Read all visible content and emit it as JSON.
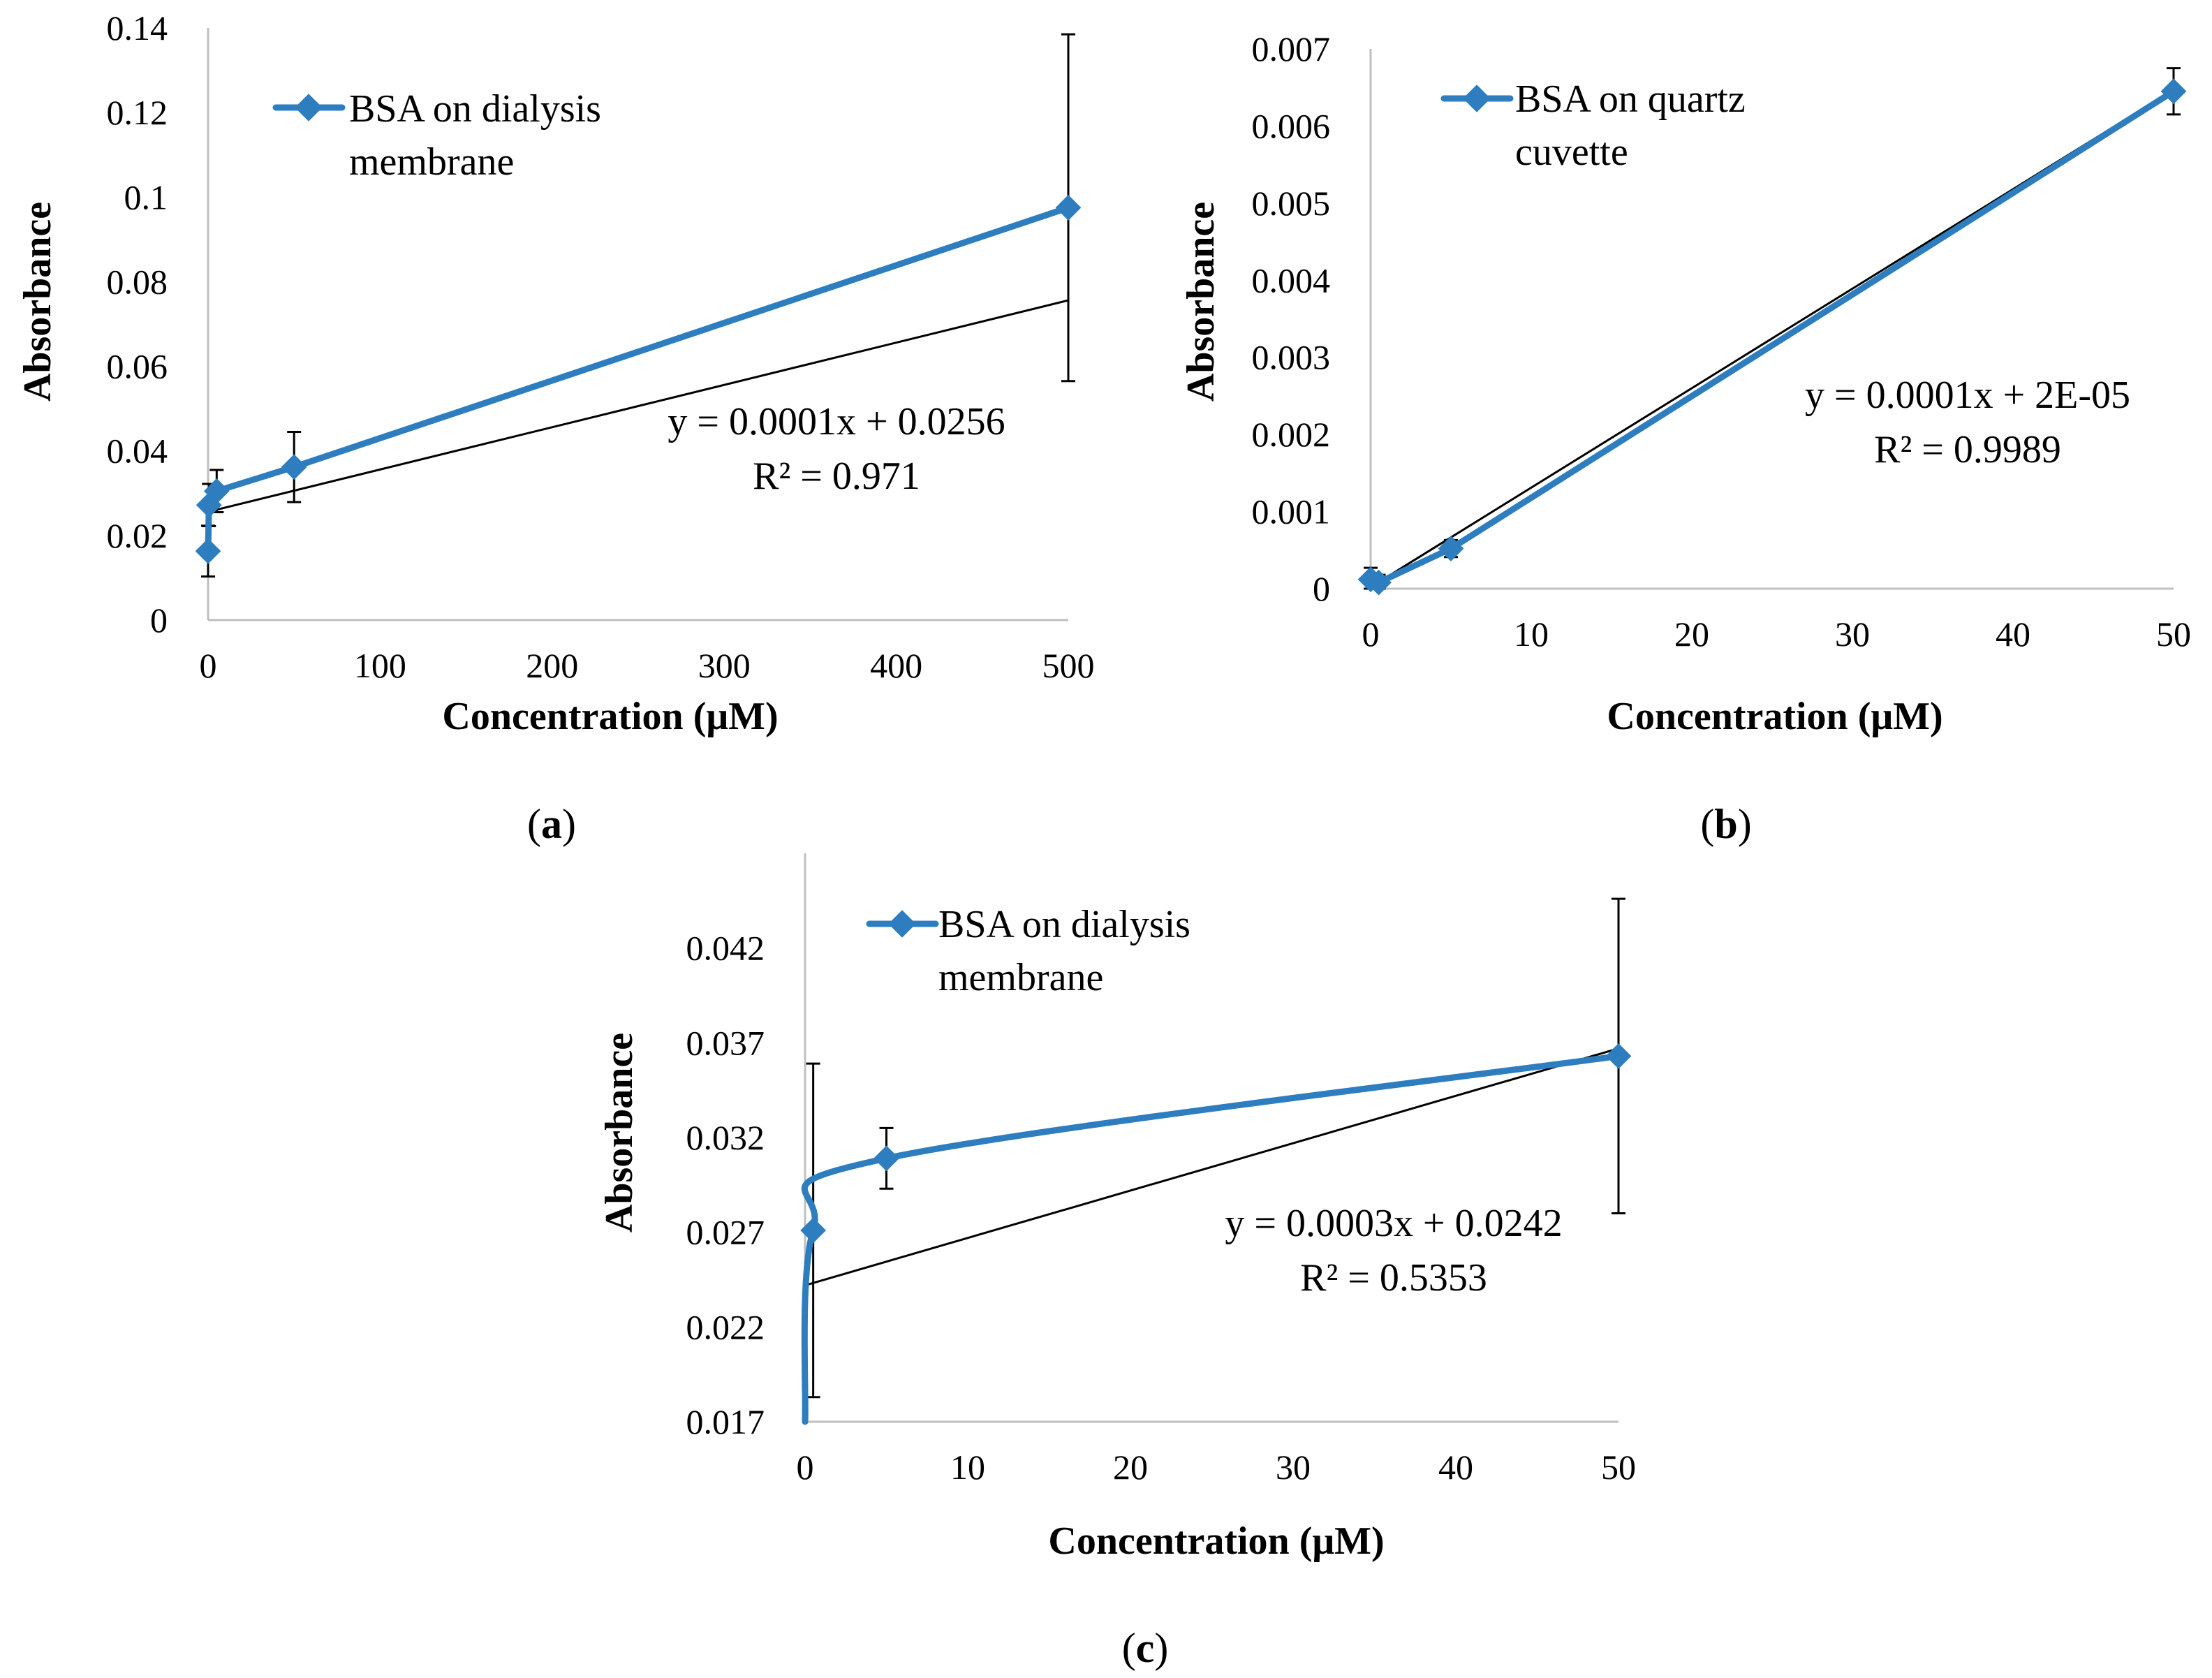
{
  "colors": {
    "series": "#2e7ebf",
    "trendline": "#000000",
    "axis": "#bfbfbf"
  },
  "chart_data": [
    {
      "panel": "a",
      "type": "line",
      "caption": {
        "open": "(",
        "letter": "a",
        "close": ")"
      },
      "xlabel": "Concentration (μM)",
      "ylabel": "Absorbance",
      "xlim": [
        0,
        500
      ],
      "ylim": [
        0,
        0.14
      ],
      "xticks": [
        0,
        100,
        200,
        300,
        400,
        500
      ],
      "yticks": [
        0,
        0.02,
        0.04,
        0.06,
        0.08,
        0.1,
        0.12,
        0.14
      ],
      "ytick_labels": [
        "0",
        "0.02",
        "0.04",
        "0.06",
        "0.08",
        "0.1",
        "0.12",
        "0.14"
      ],
      "legend": {
        "lines": [
          "BSA on dialysis",
          "membrane"
        ]
      },
      "series": [
        {
          "name": "BSA on dialysis membrane",
          "smooth": false,
          "x": [
            0,
            0.5,
            5,
            50,
            500
          ],
          "y": [
            0.0163,
            0.0272,
            0.0305,
            0.0362,
            0.0975
          ],
          "err": [
            0.006,
            0.005,
            0.005,
            0.0083,
            0.041
          ]
        }
      ],
      "trendline": {
        "slope": 0.0001,
        "intercept": 0.0256,
        "equation": "y = 0.0001x + 0.0256",
        "r2": "R² = 0.971"
      }
    },
    {
      "panel": "b",
      "type": "line",
      "caption": {
        "open": "(",
        "letter": "b",
        "close": ")"
      },
      "xlabel": "Concentration (μM)",
      "ylabel": "Absorbance",
      "xlim": [
        0,
        50
      ],
      "ylim": [
        0,
        0.007
      ],
      "xticks": [
        0,
        10,
        20,
        30,
        40,
        50
      ],
      "yticks": [
        0,
        0.001,
        0.002,
        0.003,
        0.004,
        0.005,
        0.006,
        0.007
      ],
      "ytick_labels": [
        "0",
        "0.001",
        "0.002",
        "0.003",
        "0.004",
        "0.005",
        "0.006",
        "0.007"
      ],
      "legend": {
        "lines": [
          "BSA on quartz",
          "cuvette"
        ]
      },
      "series": [
        {
          "name": "BSA on quartz cuvette",
          "smooth": false,
          "x": [
            0,
            0.5,
            5,
            50
          ],
          "y": [
            0.00012,
            8e-05,
            0.00052,
            0.00645
          ],
          "err": [
            0.00015,
            0.0001,
            0.00011,
            0.0003
          ]
        }
      ],
      "trendline": {
        "slope": 0.000129,
        "intercept": 2e-05,
        "equation": "y = 0.0001x + 2E-05",
        "r2": "R² = 0.9989"
      }
    },
    {
      "panel": "c",
      "type": "line",
      "caption": {
        "open": "(",
        "letter": "c",
        "close": ")"
      },
      "xlabel": "Concentration (μM)",
      "ylabel": "Absorbance",
      "xlim": [
        0,
        50
      ],
      "ylim": [
        0.017,
        0.047
      ],
      "xticks": [
        0,
        10,
        20,
        30,
        40,
        50
      ],
      "yticks": [
        0.017,
        0.022,
        0.027,
        0.032,
        0.037,
        0.042
      ],
      "ytick_labels": [
        "0.017",
        "0.022",
        "0.027",
        "0.032",
        "0.037",
        "0.042"
      ],
      "legend": {
        "lines": [
          "BSA on dialysis",
          "membrane"
        ]
      },
      "series": [
        {
          "name": "BSA on dialysis membrane",
          "smooth": true,
          "x": [
            0,
            0.5,
            5,
            50
          ],
          "y": [
            0.0163,
            0.0271,
            0.0309,
            0.0363
          ],
          "err": [
            0,
            0.0088,
            0.0016,
            0.0083
          ]
        }
      ],
      "trendline": {
        "slope": 0.00025,
        "intercept": 0.0242,
        "equation": "y = 0.0003x + 0.0242",
        "r2": "R² = 0.5353"
      }
    }
  ]
}
